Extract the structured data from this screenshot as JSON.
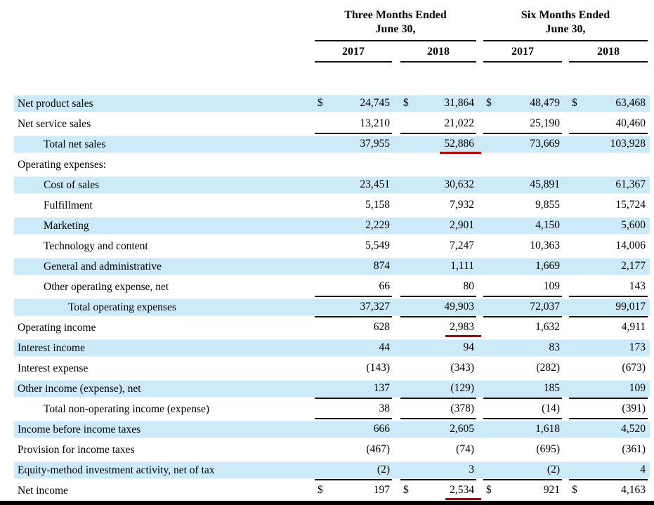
{
  "table": {
    "currency_symbol": "$",
    "colors": {
      "row_highlight": "#cdeaf8",
      "red_underline": "#c00000",
      "rule_line": "#111111"
    },
    "col_groups": [
      {
        "title_line1": "Three Months Ended",
        "title_line2": "June 30,",
        "years": [
          "2017",
          "2018"
        ]
      },
      {
        "title_line1": "Six Months Ended",
        "title_line2": "June 30,",
        "years": [
          "2017",
          "2018"
        ]
      }
    ],
    "rows": [
      {
        "label": "Net product sales",
        "indent": 0,
        "shaded": true,
        "dollar": true,
        "rule_below": false,
        "red_underline_col": null,
        "values": [
          "24,745",
          "31,864",
          "48,479",
          "63,468"
        ]
      },
      {
        "label": "Net service sales",
        "indent": 0,
        "shaded": false,
        "dollar": false,
        "rule_below": true,
        "red_underline_col": null,
        "values": [
          "13,210",
          "21,022",
          "25,190",
          "40,460"
        ]
      },
      {
        "label": "Total net sales",
        "indent": 1,
        "shaded": true,
        "dollar": false,
        "rule_below": false,
        "red_underline_col": 1,
        "values": [
          "37,955",
          "52,886",
          "73,669",
          "103,928"
        ]
      },
      {
        "label": "Operating expenses:",
        "indent": 0,
        "shaded": false,
        "dollar": false,
        "rule_below": false,
        "red_underline_col": null,
        "values": [
          "",
          "",
          "",
          ""
        ]
      },
      {
        "label": "Cost of sales",
        "indent": 1,
        "shaded": true,
        "dollar": false,
        "rule_below": false,
        "red_underline_col": null,
        "values": [
          "23,451",
          "30,632",
          "45,891",
          "61,367"
        ]
      },
      {
        "label": "Fulfillment",
        "indent": 1,
        "shaded": false,
        "dollar": false,
        "rule_below": false,
        "red_underline_col": null,
        "values": [
          "5,158",
          "7,932",
          "9,855",
          "15,724"
        ]
      },
      {
        "label": "Marketing",
        "indent": 1,
        "shaded": true,
        "dollar": false,
        "rule_below": false,
        "red_underline_col": null,
        "values": [
          "2,229",
          "2,901",
          "4,150",
          "5,600"
        ]
      },
      {
        "label": "Technology and content",
        "indent": 1,
        "shaded": false,
        "dollar": false,
        "rule_below": false,
        "red_underline_col": null,
        "values": [
          "5,549",
          "7,247",
          "10,363",
          "14,006"
        ]
      },
      {
        "label": "General and administrative",
        "indent": 1,
        "shaded": true,
        "dollar": false,
        "rule_below": false,
        "red_underline_col": null,
        "values": [
          "874",
          "1,111",
          "1,669",
          "2,177"
        ]
      },
      {
        "label": "Other operating expense, net",
        "indent": 1,
        "shaded": false,
        "dollar": false,
        "rule_below": true,
        "red_underline_col": null,
        "values": [
          "66",
          "80",
          "109",
          "143"
        ]
      },
      {
        "label": "Total operating expenses",
        "indent": 2,
        "shaded": true,
        "dollar": false,
        "rule_below": true,
        "red_underline_col": null,
        "values": [
          "37,327",
          "49,903",
          "72,037",
          "99,017"
        ]
      },
      {
        "label": "Operating income",
        "indent": 0,
        "shaded": false,
        "dollar": false,
        "rule_below": false,
        "red_underline_col": 1,
        "values": [
          "628",
          "2,983",
          "1,632",
          "4,911"
        ]
      },
      {
        "label": "Interest income",
        "indent": 0,
        "shaded": true,
        "dollar": false,
        "rule_below": false,
        "red_underline_col": null,
        "values": [
          "44",
          "94",
          "83",
          "173"
        ]
      },
      {
        "label": "Interest expense",
        "indent": 0,
        "shaded": false,
        "dollar": false,
        "rule_below": false,
        "red_underline_col": null,
        "values": [
          "(143)",
          "(343)",
          "(282)",
          "(673)"
        ]
      },
      {
        "label": "Other income (expense), net",
        "indent": 0,
        "shaded": true,
        "dollar": false,
        "rule_below": true,
        "red_underline_col": null,
        "values": [
          "137",
          "(129)",
          "185",
          "109"
        ]
      },
      {
        "label": "Total non-operating income (expense)",
        "indent": 1,
        "shaded": false,
        "dollar": false,
        "rule_below": true,
        "red_underline_col": null,
        "values": [
          "38",
          "(378)",
          "(14)",
          "(391)"
        ]
      },
      {
        "label": "Income before income taxes",
        "indent": 0,
        "shaded": true,
        "dollar": false,
        "rule_below": false,
        "red_underline_col": null,
        "values": [
          "666",
          "2,605",
          "1,618",
          "4,520"
        ]
      },
      {
        "label": "Provision for income taxes",
        "indent": 0,
        "shaded": false,
        "dollar": false,
        "rule_below": false,
        "red_underline_col": null,
        "values": [
          "(467)",
          "(74)",
          "(695)",
          "(361)"
        ]
      },
      {
        "label": "Equity-method investment activity, net of tax",
        "indent": 0,
        "shaded": true,
        "dollar": false,
        "rule_below": true,
        "red_underline_col": null,
        "values": [
          "(2)",
          "3",
          "(2)",
          "4"
        ]
      },
      {
        "label": "Net income",
        "indent": 0,
        "shaded": false,
        "dollar": true,
        "rule_below": false,
        "red_underline_col": 1,
        "values": [
          "197",
          "2,534",
          "921",
          "4,163"
        ]
      }
    ]
  }
}
